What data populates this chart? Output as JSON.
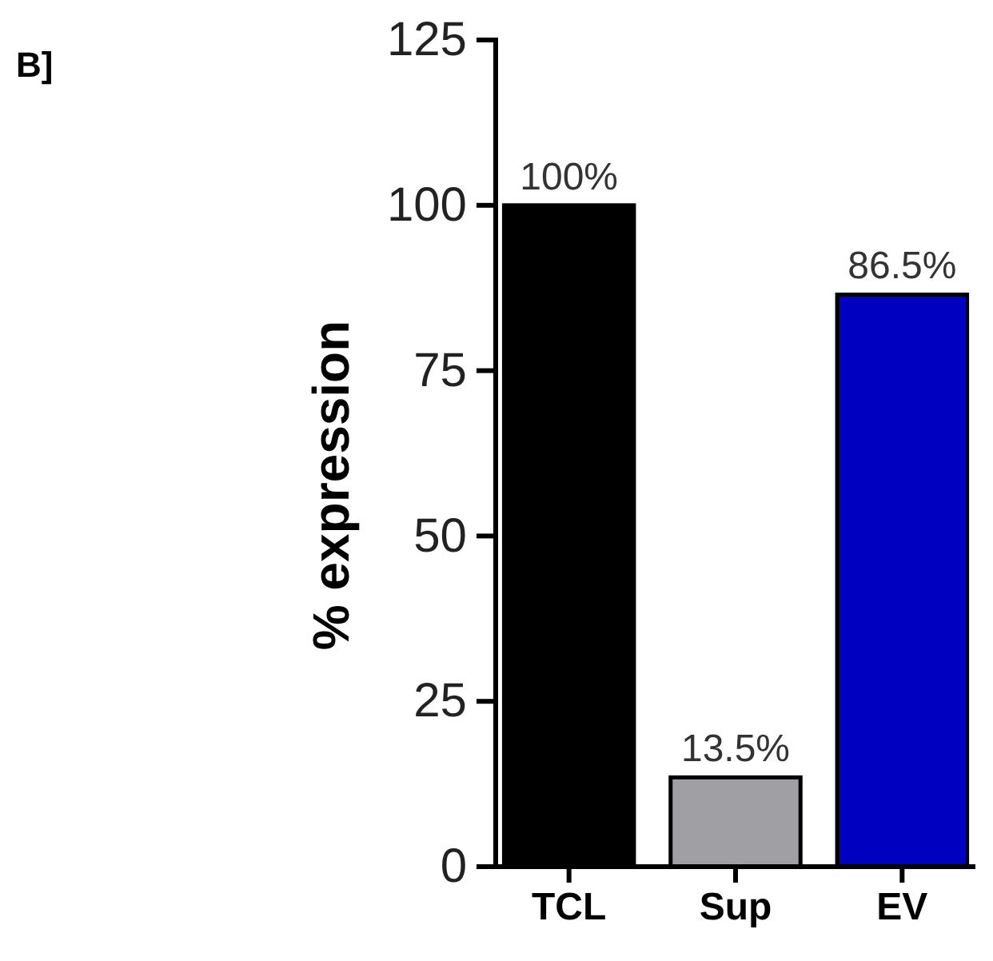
{
  "chart_data": {
    "type": "bar",
    "annotations": [
      "B]"
    ],
    "ylabel": "% expression",
    "categories": [
      "TCL",
      "Sup",
      "EV"
    ],
    "values": [
      100,
      13.5,
      86.5
    ],
    "colors": [
      "#000000",
      "#a0a0a4",
      "#0000c0"
    ],
    "value_labels": [
      "100%",
      "13.5%",
      "86.5%"
    ],
    "ylim": [
      0,
      125
    ],
    "yticks": [
      0,
      25,
      50,
      75,
      100,
      125
    ],
    "grid": false
  }
}
